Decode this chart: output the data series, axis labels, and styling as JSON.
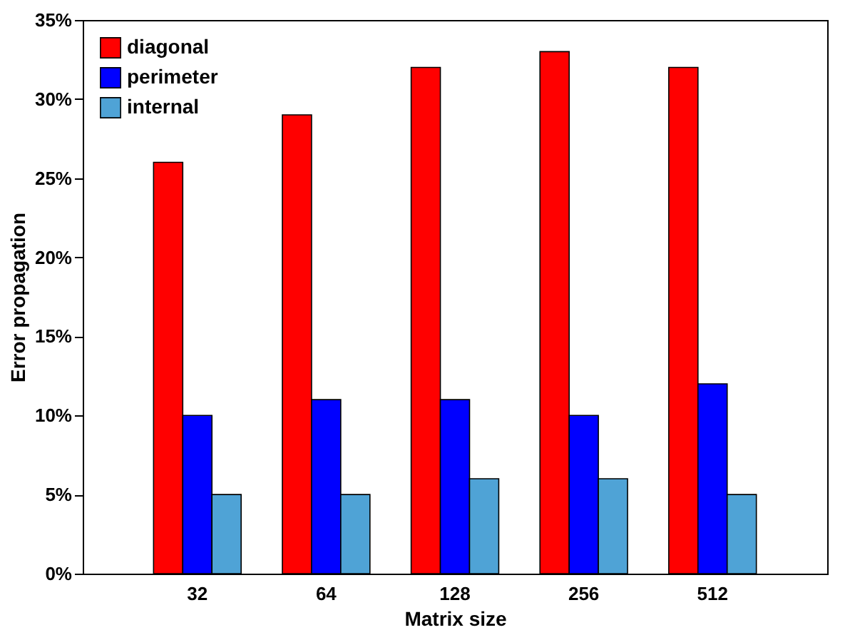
{
  "chart_data": {
    "type": "bar",
    "xlabel": "Matrix size",
    "ylabel": "Error propagation",
    "categories": [
      "32",
      "64",
      "128",
      "256",
      "512"
    ],
    "series": [
      {
        "name": "diagonal",
        "color": "#ff0000",
        "values": [
          26,
          29,
          32,
          33,
          32
        ]
      },
      {
        "name": "perimeter",
        "color": "#0000ff",
        "values": [
          10,
          11,
          11,
          10,
          12
        ]
      },
      {
        "name": "internal",
        "color": "#4fa3d6",
        "values": [
          5,
          5,
          6,
          6,
          5
        ]
      }
    ],
    "ylim": [
      0,
      35
    ],
    "yticks": [
      {
        "value": 0,
        "label": "0%"
      },
      {
        "value": 5,
        "label": "5%"
      },
      {
        "value": 10,
        "label": "10%"
      },
      {
        "value": 15,
        "label": "15%"
      },
      {
        "value": 20,
        "label": "20%"
      },
      {
        "value": 25,
        "label": "25%"
      },
      {
        "value": 30,
        "label": "30%"
      },
      {
        "value": 35,
        "label": "35%"
      }
    ],
    "legend": "top left",
    "grid": false
  }
}
